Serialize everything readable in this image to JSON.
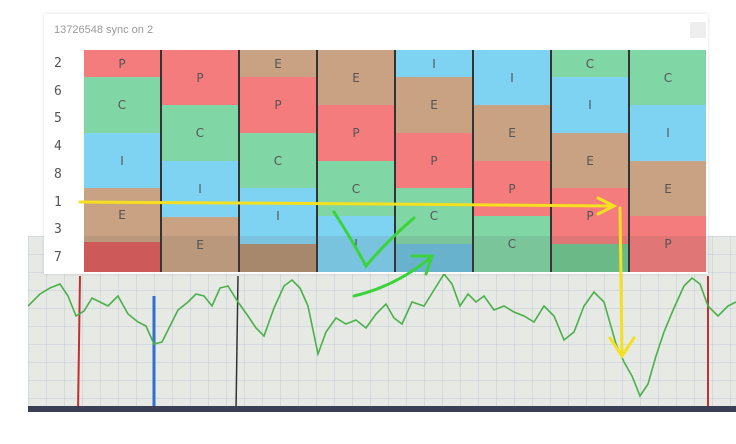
{
  "window": {
    "title": "13726548 sync on 2"
  },
  "rows": [
    "2",
    "6",
    "5",
    "4",
    "8",
    "1",
    "3",
    "7"
  ],
  "columns": [
    {
      "segments": [
        {
          "label": "P",
          "color": "#f47c7c",
          "h": 27
        },
        {
          "label": "C",
          "color": "#80d6a4",
          "h": 56
        },
        {
          "label": "I",
          "color": "#7fd3f2",
          "h": 55
        },
        {
          "label": "E",
          "color": "#c8a282",
          "h": 54
        },
        {
          "label": "",
          "color": "#e05a5a",
          "h": 30
        }
      ]
    },
    {
      "segments": [
        {
          "label": "P",
          "color": "#f47c7c",
          "h": 55
        },
        {
          "label": "C",
          "color": "#80d6a4",
          "h": 56
        },
        {
          "label": "I",
          "color": "#7fd3f2",
          "h": 56
        },
        {
          "label": "E",
          "color": "#c8a282",
          "h": 55
        }
      ]
    },
    {
      "segments": [
        {
          "label": "E",
          "color": "#c8a282",
          "h": 27
        },
        {
          "label": "P",
          "color": "#f47c7c",
          "h": 56
        },
        {
          "label": "C",
          "color": "#80d6a4",
          "h": 55
        },
        {
          "label": "I",
          "color": "#7fd3f2",
          "h": 56
        },
        {
          "label": "",
          "color": "#b49070",
          "h": 28
        }
      ]
    },
    {
      "segments": [
        {
          "label": "E",
          "color": "#c8a282",
          "h": 55
        },
        {
          "label": "P",
          "color": "#f47c7c",
          "h": 56
        },
        {
          "label": "C",
          "color": "#80d6a4",
          "h": 55
        },
        {
          "label": "I",
          "color": "#7fd3f2",
          "h": 56
        }
      ]
    },
    {
      "segments": [
        {
          "label": "I",
          "color": "#7fd3f2",
          "h": 27
        },
        {
          "label": "E",
          "color": "#c8a282",
          "h": 56
        },
        {
          "label": "P",
          "color": "#f47c7c",
          "h": 55
        },
        {
          "label": "C",
          "color": "#80d6a4",
          "h": 56
        },
        {
          "label": "",
          "color": "#6cc0e0",
          "h": 28
        }
      ]
    },
    {
      "segments": [
        {
          "label": "I",
          "color": "#7fd3f2",
          "h": 55
        },
        {
          "label": "E",
          "color": "#c8a282",
          "h": 56
        },
        {
          "label": "P",
          "color": "#f47c7c",
          "h": 55
        },
        {
          "label": "C",
          "color": "#80d6a4",
          "h": 56
        }
      ]
    },
    {
      "segments": [
        {
          "label": "C",
          "color": "#80d6a4",
          "h": 27
        },
        {
          "label": "I",
          "color": "#7fd3f2",
          "h": 56
        },
        {
          "label": "E",
          "color": "#c8a282",
          "h": 55
        },
        {
          "label": "P",
          "color": "#f47c7c",
          "h": 56
        },
        {
          "label": "",
          "color": "#70c890",
          "h": 28
        }
      ]
    },
    {
      "segments": [
        {
          "label": "C",
          "color": "#80d6a4",
          "h": 55
        },
        {
          "label": "I",
          "color": "#7fd3f2",
          "h": 56
        },
        {
          "label": "E",
          "color": "#c8a282",
          "h": 55
        },
        {
          "label": "P",
          "color": "#f47c7c",
          "h": 56
        }
      ]
    }
  ]
}
